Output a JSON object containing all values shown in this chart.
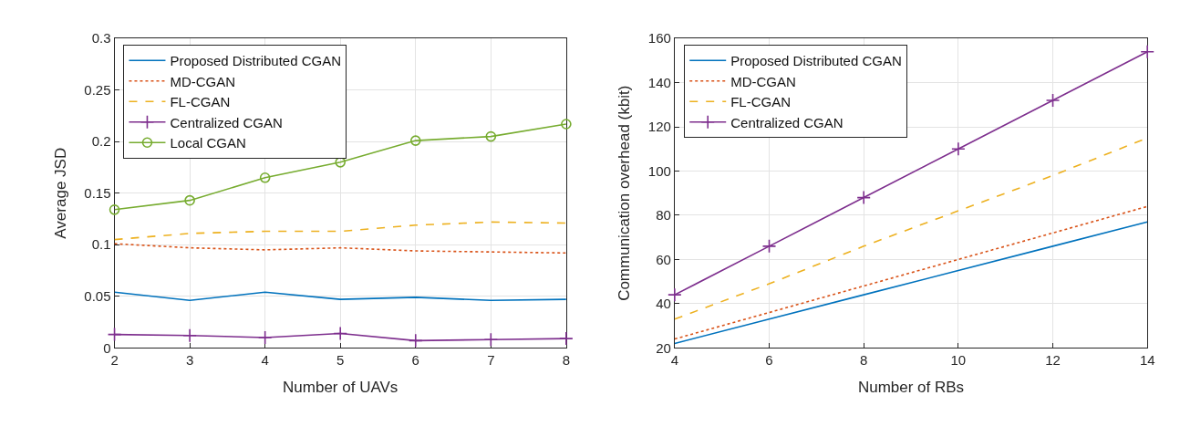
{
  "chart_data": [
    {
      "type": "line",
      "xlabel": "Number of UAVs",
      "ylabel": "Average JSD",
      "x": [
        2,
        3,
        4,
        5,
        6,
        7,
        8
      ],
      "xlim": [
        2,
        8
      ],
      "xticks": [
        2,
        3,
        4,
        5,
        6,
        7,
        8
      ],
      "ylim": [
        0,
        0.3
      ],
      "yticks": [
        0,
        0.05,
        0.1,
        0.15,
        0.2,
        0.25,
        0.3
      ],
      "grid": true,
      "legend": "top left",
      "series": [
        {
          "name": "Proposed Distributed CGAN",
          "color": "#0072bd",
          "line_style": "solid",
          "marker": "none",
          "values": [
            0.054,
            0.046,
            0.054,
            0.047,
            0.049,
            0.046,
            0.047
          ]
        },
        {
          "name": "MD-CGAN",
          "color": "#d95319",
          "line_style": "dotted",
          "marker": "none",
          "values": [
            0.101,
            0.097,
            0.095,
            0.097,
            0.094,
            0.093,
            0.092
          ]
        },
        {
          "name": "FL-CGAN",
          "color": "#edb120",
          "line_style": "dashed",
          "marker": "none",
          "values": [
            0.105,
            0.111,
            0.113,
            0.113,
            0.119,
            0.122,
            0.121
          ]
        },
        {
          "name": "Centralized CGAN",
          "color": "#7e2f8e",
          "line_style": "solid",
          "marker": "cross",
          "values": [
            0.013,
            0.012,
            0.01,
            0.014,
            0.007,
            0.008,
            0.009
          ]
        },
        {
          "name": "Local CGAN",
          "color": "#77ac30",
          "line_style": "solid",
          "marker": "circle",
          "values": [
            0.134,
            0.143,
            0.165,
            0.18,
            0.201,
            0.205,
            0.217
          ]
        }
      ]
    },
    {
      "type": "line",
      "xlabel": "Number of RBs",
      "ylabel": "Communication overhead (kbit)",
      "x": [
        4,
        6,
        8,
        10,
        12,
        14
      ],
      "xlim": [
        4,
        14
      ],
      "xticks": [
        4,
        6,
        8,
        10,
        12,
        14
      ],
      "ylim": [
        20,
        160
      ],
      "yticks": [
        20,
        40,
        60,
        80,
        100,
        120,
        140,
        160
      ],
      "grid": true,
      "legend": "top left",
      "series": [
        {
          "name": "Proposed Distributed CGAN",
          "color": "#0072bd",
          "line_style": "solid",
          "marker": "none",
          "values": [
            22,
            33,
            44,
            55,
            66,
            77
          ]
        },
        {
          "name": "MD-CGAN",
          "color": "#d95319",
          "line_style": "dotted",
          "marker": "none",
          "values": [
            24,
            36,
            48,
            60,
            72,
            84
          ]
        },
        {
          "name": "FL-CGAN",
          "color": "#edb120",
          "line_style": "dashed",
          "marker": "none",
          "values": [
            33,
            49,
            66,
            82,
            98,
            115
          ]
        },
        {
          "name": "Centralized CGAN",
          "color": "#7e2f8e",
          "line_style": "solid",
          "marker": "cross",
          "values": [
            44,
            66,
            88,
            110,
            132,
            154
          ]
        }
      ]
    }
  ]
}
